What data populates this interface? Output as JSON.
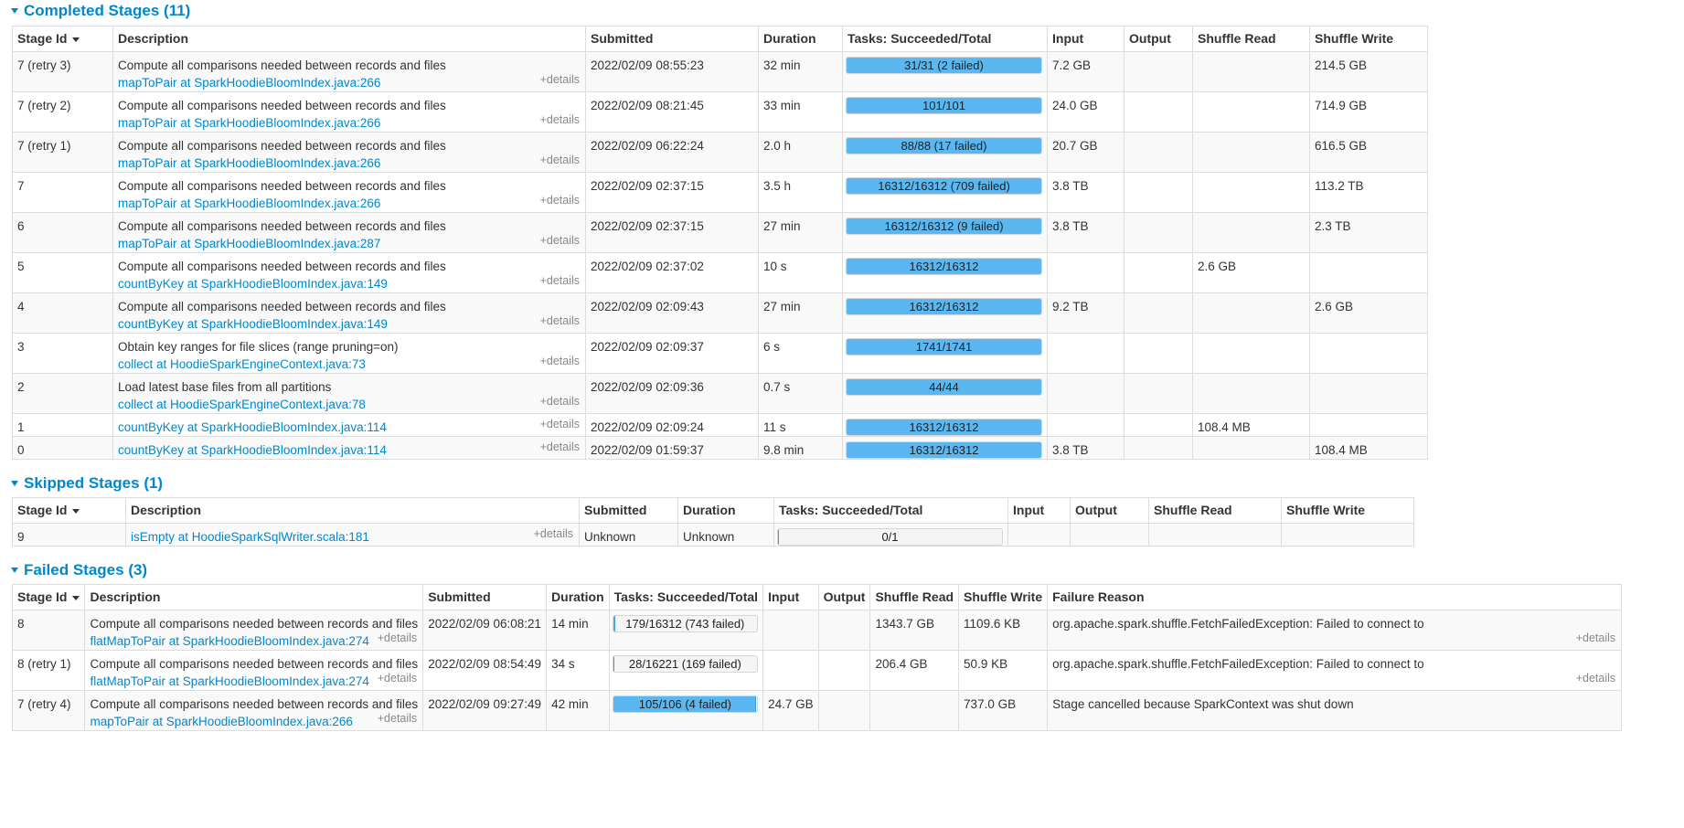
{
  "completed": {
    "title": "Completed Stages (11)",
    "headers": [
      "Stage Id",
      "Description",
      "Submitted",
      "Duration",
      "Tasks: Succeeded/Total",
      "Input",
      "Output",
      "Shuffle Read",
      "Shuffle Write"
    ],
    "details_label": "+details",
    "rows": [
      {
        "id": "7 (retry 3)",
        "name": "Compute all comparisons needed between records and files",
        "link": "mapToPair at SparkHoodieBloomIndex.java:266",
        "submitted": "2022/02/09 08:55:23",
        "duration": "32 min",
        "tasks": "31/31 (2 failed)",
        "progress": 1.0,
        "input": "7.2 GB",
        "output": "",
        "shuffle_read": "",
        "shuffle_write": "214.5 GB"
      },
      {
        "id": "7 (retry 2)",
        "name": "Compute all comparisons needed between records and files",
        "link": "mapToPair at SparkHoodieBloomIndex.java:266",
        "submitted": "2022/02/09 08:21:45",
        "duration": "33 min",
        "tasks": "101/101",
        "progress": 1.0,
        "input": "24.0 GB",
        "output": "",
        "shuffle_read": "",
        "shuffle_write": "714.9 GB"
      },
      {
        "id": "7 (retry 1)",
        "name": "Compute all comparisons needed between records and files",
        "link": "mapToPair at SparkHoodieBloomIndex.java:266",
        "submitted": "2022/02/09 06:22:24",
        "duration": "2.0 h",
        "tasks": "88/88 (17 failed)",
        "progress": 1.0,
        "input": "20.7 GB",
        "output": "",
        "shuffle_read": "",
        "shuffle_write": "616.5 GB"
      },
      {
        "id": "7",
        "name": "Compute all comparisons needed between records and files",
        "link": "mapToPair at SparkHoodieBloomIndex.java:266",
        "submitted": "2022/02/09 02:37:15",
        "duration": "3.5 h",
        "tasks": "16312/16312 (709 failed)",
        "progress": 1.0,
        "input": "3.8 TB",
        "output": "",
        "shuffle_read": "",
        "shuffle_write": "113.2 TB"
      },
      {
        "id": "6",
        "name": "Compute all comparisons needed between records and files",
        "link": "mapToPair at SparkHoodieBloomIndex.java:287",
        "submitted": "2022/02/09 02:37:15",
        "duration": "27 min",
        "tasks": "16312/16312 (9 failed)",
        "progress": 1.0,
        "input": "3.8 TB",
        "output": "",
        "shuffle_read": "",
        "shuffle_write": "2.3 TB"
      },
      {
        "id": "5",
        "name": "Compute all comparisons needed between records and files",
        "link": "countByKey at SparkHoodieBloomIndex.java:149",
        "submitted": "2022/02/09 02:37:02",
        "duration": "10 s",
        "tasks": "16312/16312",
        "progress": 1.0,
        "input": "",
        "output": "",
        "shuffle_read": "2.6 GB",
        "shuffle_write": ""
      },
      {
        "id": "4",
        "name": "Compute all comparisons needed between records and files",
        "link": "countByKey at SparkHoodieBloomIndex.java:149",
        "submitted": "2022/02/09 02:09:43",
        "duration": "27 min",
        "tasks": "16312/16312",
        "progress": 1.0,
        "input": "9.2 TB",
        "output": "",
        "shuffle_read": "",
        "shuffle_write": "2.6 GB"
      },
      {
        "id": "3",
        "name": "Obtain key ranges for file slices (range pruning=on)",
        "link": "collect at HoodieSparkEngineContext.java:73",
        "submitted": "2022/02/09 02:09:37",
        "duration": "6 s",
        "tasks": "1741/1741",
        "progress": 1.0,
        "input": "",
        "output": "",
        "shuffle_read": "",
        "shuffle_write": ""
      },
      {
        "id": "2",
        "name": "Load latest base files from all partitions",
        "link": "collect at HoodieSparkEngineContext.java:78",
        "submitted": "2022/02/09 02:09:36",
        "duration": "0.7 s",
        "tasks": "44/44",
        "progress": 1.0,
        "input": "",
        "output": "",
        "shuffle_read": "",
        "shuffle_write": ""
      },
      {
        "id": "1",
        "name": "",
        "link": "countByKey at SparkHoodieBloomIndex.java:114",
        "submitted": "2022/02/09 02:09:24",
        "duration": "11 s",
        "tasks": "16312/16312",
        "progress": 1.0,
        "input": "",
        "output": "",
        "shuffle_read": "108.4 MB",
        "shuffle_write": ""
      },
      {
        "id": "0",
        "name": "",
        "link": "countByKey at SparkHoodieBloomIndex.java:114",
        "submitted": "2022/02/09 01:59:37",
        "duration": "9.8 min",
        "tasks": "16312/16312",
        "progress": 1.0,
        "input": "3.8 TB",
        "output": "",
        "shuffle_read": "",
        "shuffle_write": "108.4 MB"
      }
    ]
  },
  "skipped": {
    "title": "Skipped Stages (1)",
    "headers": [
      "Stage Id",
      "Description",
      "Submitted",
      "Duration",
      "Tasks: Succeeded/Total",
      "Input",
      "Output",
      "Shuffle Read",
      "Shuffle Write"
    ],
    "details_label": "+details",
    "rows": [
      {
        "id": "9",
        "name": "",
        "link": "isEmpty at HoodieSparkSqlWriter.scala:181",
        "submitted": "Unknown",
        "duration": "Unknown",
        "tasks": "0/1",
        "progress": 0.0,
        "input": "",
        "output": "",
        "shuffle_read": "",
        "shuffle_write": ""
      }
    ]
  },
  "failed": {
    "title": "Failed Stages (3)",
    "headers": [
      "Stage Id",
      "Description",
      "Submitted",
      "Duration",
      "Tasks: Succeeded/Total",
      "Input",
      "Output",
      "Shuffle Read",
      "Shuffle Write",
      "Failure Reason"
    ],
    "details_label": "+details",
    "rows": [
      {
        "id": "8",
        "name": "Compute all comparisons needed between records and files",
        "link": "flatMapToPair at SparkHoodieBloomIndex.java:274",
        "submitted": "2022/02/09 06:08:21",
        "duration": "14 min",
        "tasks": "179/16312 (743 failed)",
        "progress": 0.011,
        "input": "",
        "output": "",
        "shuffle_read": "1343.7 GB",
        "shuffle_write": "1109.6 KB",
        "reason": "org.apache.spark.shuffle.FetchFailedException: Failed to connect to",
        "reason_details": true
      },
      {
        "id": "8 (retry 1)",
        "name": "Compute all comparisons needed between records and files",
        "link": "flatMapToPair at SparkHoodieBloomIndex.java:274",
        "submitted": "2022/02/09 08:54:49",
        "duration": "34 s",
        "tasks": "28/16221 (169 failed)",
        "progress": 0.002,
        "input": "",
        "output": "",
        "shuffle_read": "206.4 GB",
        "shuffle_write": "50.9 KB",
        "reason": "org.apache.spark.shuffle.FetchFailedException: Failed to connect to",
        "reason_details": true
      },
      {
        "id": "7 (retry 4)",
        "name": "Compute all comparisons needed between records and files",
        "link": "mapToPair at SparkHoodieBloomIndex.java:266",
        "submitted": "2022/02/09 09:27:49",
        "duration": "42 min",
        "tasks": "105/106 (4 failed)",
        "progress": 0.99,
        "input": "24.7 GB",
        "output": "",
        "shuffle_read": "",
        "shuffle_write": "737.0 GB",
        "reason": "Stage cancelled because SparkContext was shut down",
        "reason_details": false
      }
    ]
  },
  "colors": {
    "link": "#0088cc",
    "progress_fill": "#5bb7f0",
    "stripe": "#f9f9f9"
  }
}
